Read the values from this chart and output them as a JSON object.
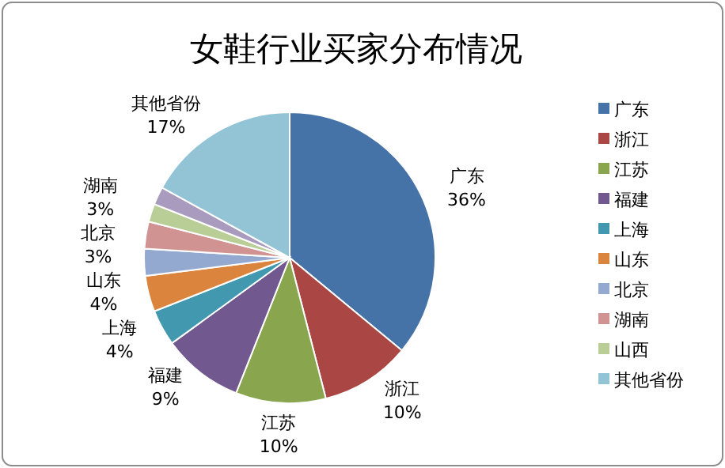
{
  "chart_data": {
    "type": "pie",
    "title": "女鞋行业买家分布情况",
    "categories": [
      "广东",
      "浙江",
      "江苏",
      "福建",
      "上海",
      "山东",
      "北京",
      "湖南",
      "山西",
      null,
      "其他省份"
    ],
    "values": [
      36,
      10,
      10,
      9,
      4,
      4,
      3,
      3,
      2,
      2,
      17
    ],
    "value_labels": [
      "36%",
      "10%",
      "10%",
      "9%",
      "4%",
      "4%",
      "3%",
      "3%",
      null,
      null,
      "17%"
    ],
    "colors": [
      "#4572a7",
      "#aa4643",
      "#89a54e",
      "#71588f",
      "#4198af",
      "#db843d",
      "#93a9cf",
      "#d19392",
      "#b9cd96",
      "#a99bbd",
      "#93c4d6"
    ],
    "legend": "right"
  }
}
